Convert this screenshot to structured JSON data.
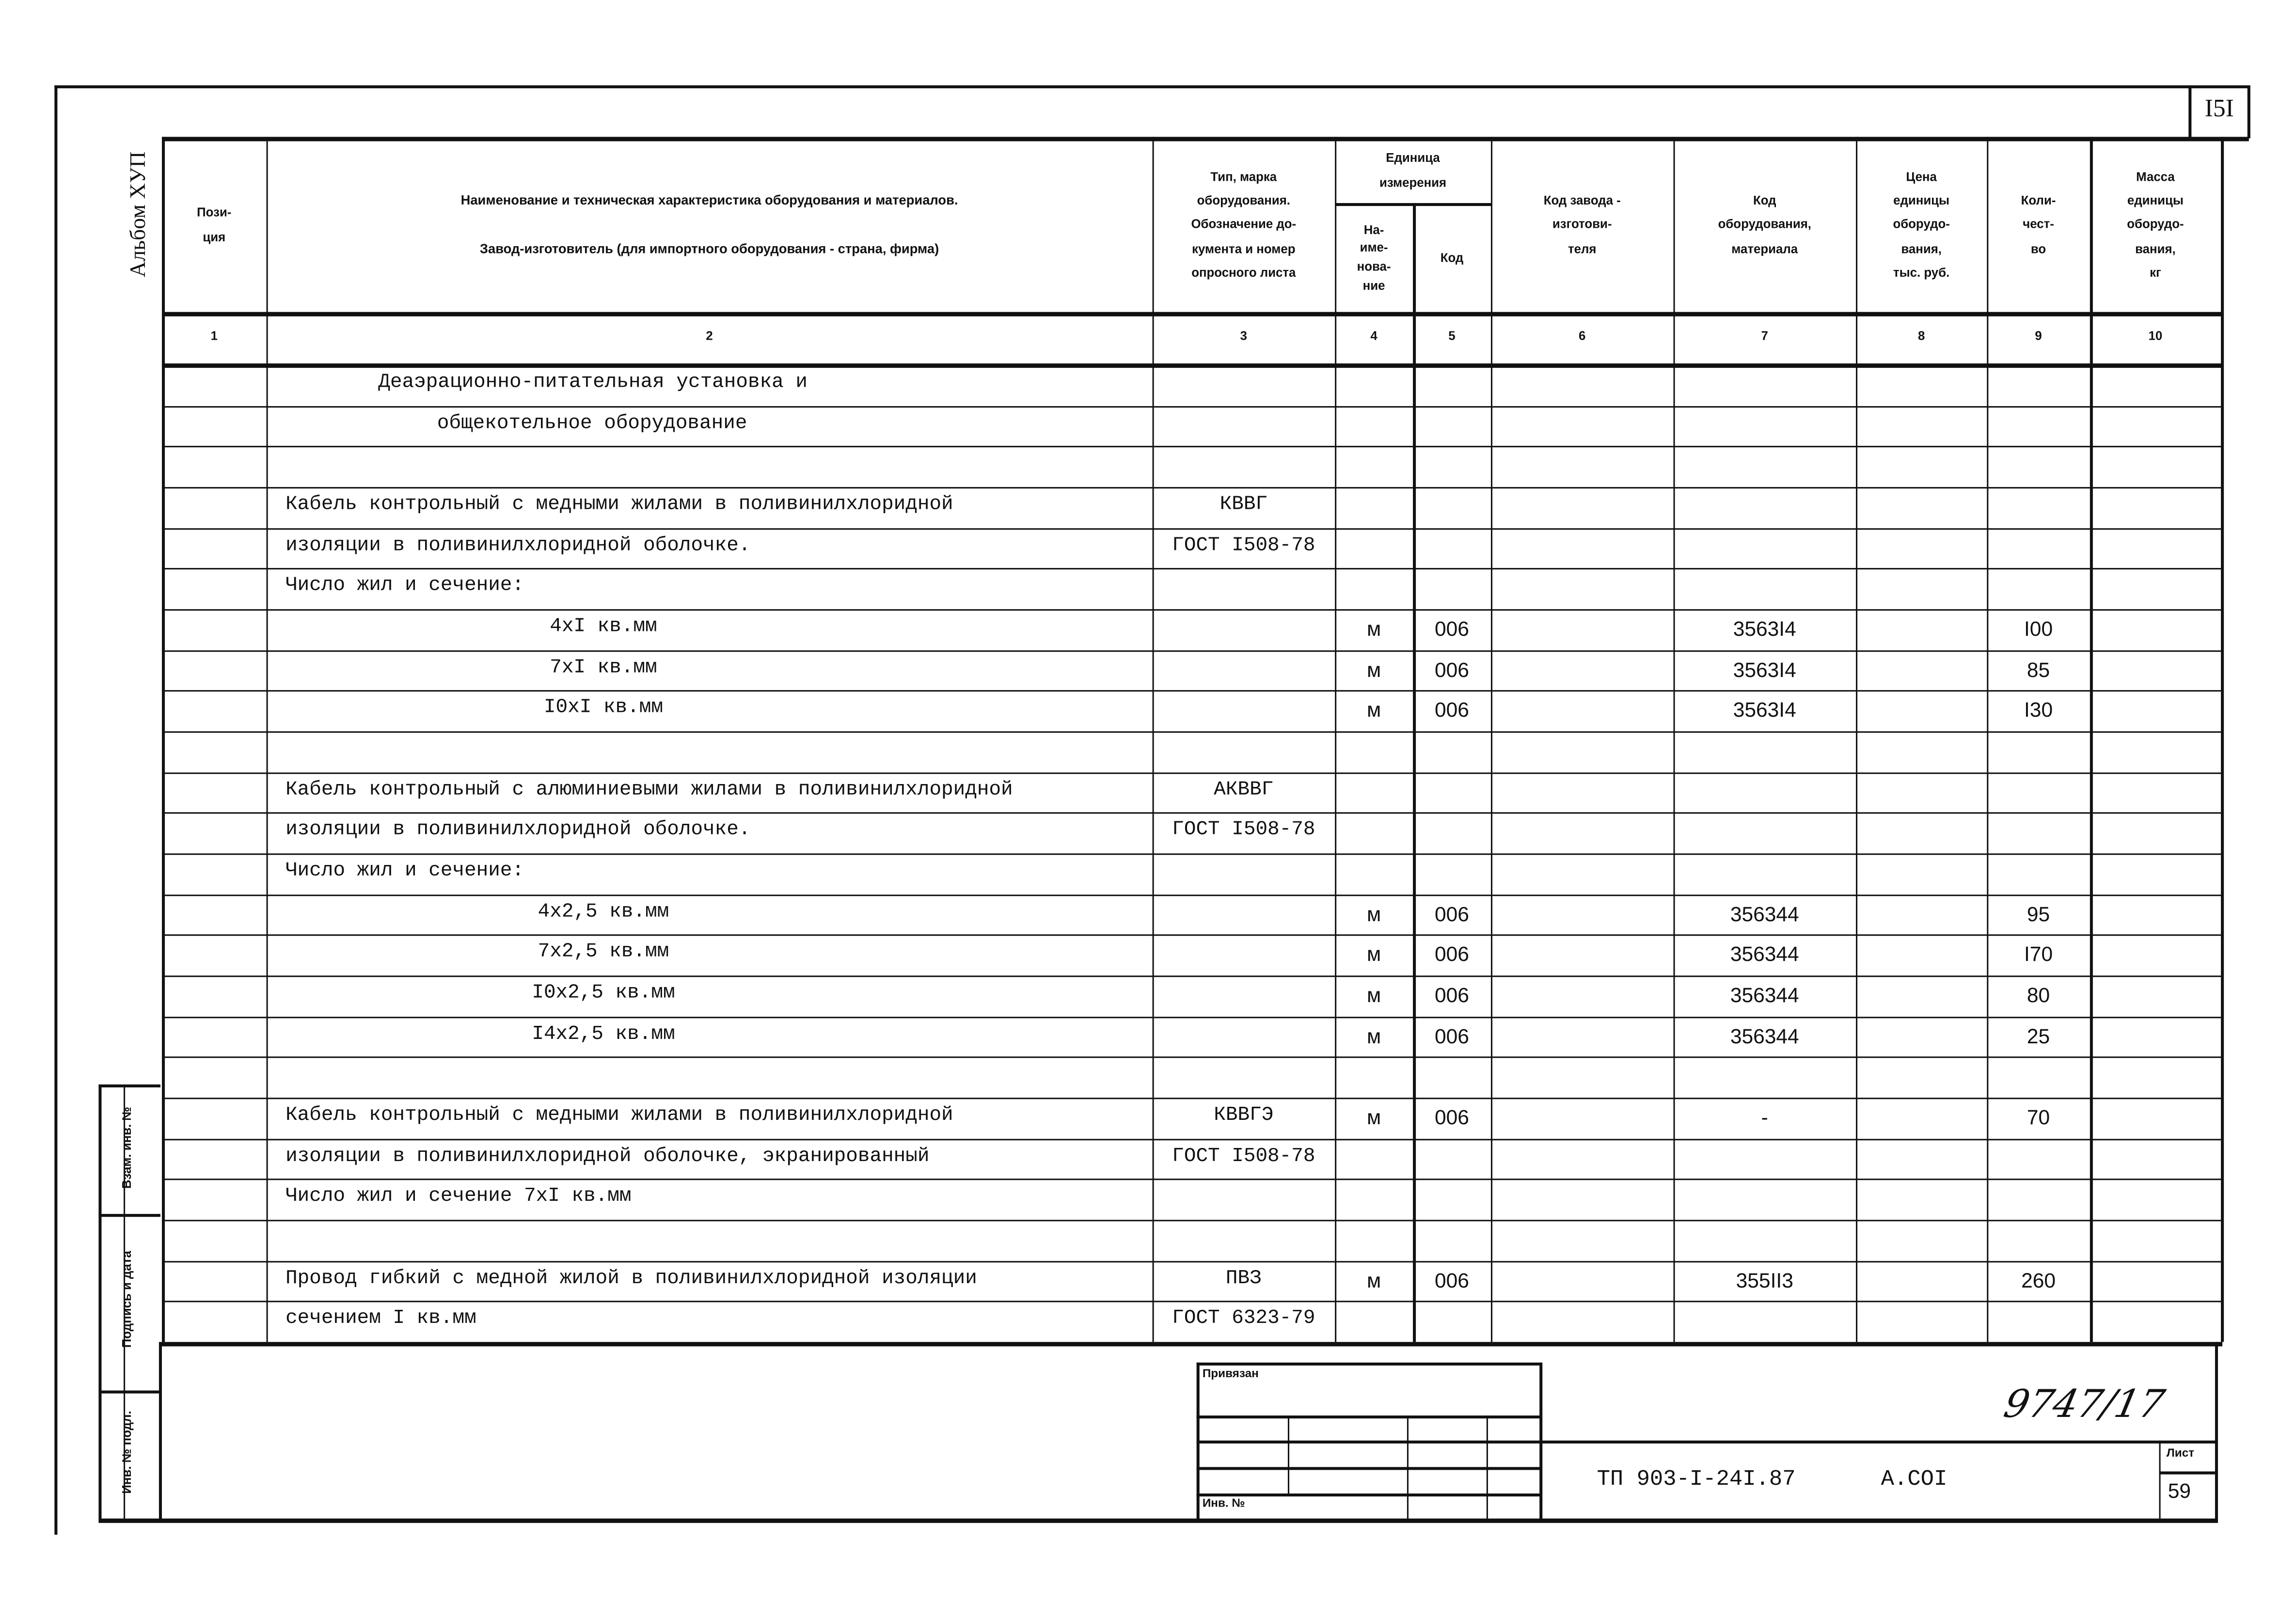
{
  "sheet_number": "I5I",
  "album_label": "Альбом ХУП",
  "header": {
    "col1": "Пози-\nция",
    "col2": "Наименование и техническая характеристика оборудования и материалов.\nЗавод-изготовитель (для импортного оборудования - страна, фирма)",
    "col3": "Тип, марка\nоборудования.\nОбозначение до-\nкумента и номер\nопросного листа",
    "unit_group": "Единица\nизмерения",
    "col4": "На-\nиме-\nнова-\nние",
    "col5": "Код",
    "col6": "Код завода -\nизготови-\nтеля",
    "col7": "Код\nоборудования,\nматериала",
    "col8": "Цена\nединицы\nоборудо-\nвания,\nтыс. руб.",
    "col9": "Коли-\nчест-\nво",
    "col10": "Масса\nединицы\nоборудо-\nвания,\nкг",
    "numbers": [
      "1",
      "2",
      "3",
      "4",
      "5",
      "6",
      "7",
      "8",
      "9",
      "10"
    ]
  },
  "rows": [
    {
      "name": "Деаэрационно-питательная установка и",
      "indent": "title"
    },
    {
      "name": "общекотельное оборудование",
      "indent": "title2"
    },
    {},
    {
      "name": "Кабель контрольный с медными жилами в поливинилхлоридной",
      "type": "КВВГ"
    },
    {
      "name": "изоляции в поливинилхлоридной оболочке.",
      "type": "ГОСТ I508-78"
    },
    {
      "name": "Число жил и сечение:"
    },
    {
      "name": "4xI кв.мм",
      "indent": "sub",
      "unit": "м",
      "unit_code": "006",
      "code": "3563I4",
      "qty": "I00"
    },
    {
      "name": "7xI кв.мм",
      "indent": "sub",
      "unit": "м",
      "unit_code": "006",
      "code": "3563I4",
      "qty": "85"
    },
    {
      "name": "I0xI кв.мм",
      "indent": "sub",
      "unit": "м",
      "unit_code": "006",
      "code": "3563I4",
      "qty": "I30"
    },
    {},
    {
      "name": "Кабель контрольный с алюминиевыми жилами в поливинилхлоридной",
      "type": "АКВВГ"
    },
    {
      "name": "изоляции в поливинилхлоридной оболочке.",
      "type": "ГОСТ I508-78"
    },
    {
      "name": "Число жил и сечение:"
    },
    {
      "name": "4x2,5 кв.мм",
      "indent": "sub",
      "unit": "м",
      "unit_code": "006",
      "code": "356344",
      "qty": "95"
    },
    {
      "name": "7x2,5 кв.мм",
      "indent": "sub",
      "unit": "м",
      "unit_code": "006",
      "code": "356344",
      "qty": "I70"
    },
    {
      "name": "I0x2,5 кв.мм",
      "indent": "sub",
      "unit": "м",
      "unit_code": "006",
      "code": "356344",
      "qty": "80"
    },
    {
      "name": "I4x2,5 кв.мм",
      "indent": "sub",
      "unit": "м",
      "unit_code": "006",
      "code": "356344",
      "qty": "25"
    },
    {},
    {
      "name": "Кабель контрольный с медными жилами в поливинилхлоридной",
      "type": "КВВГЭ",
      "unit": "м",
      "unit_code": "006",
      "code": "-",
      "qty": "70"
    },
    {
      "name": "изоляции в поливинилхлоридной оболочке, экранированный",
      "type": "ГОСТ I508-78"
    },
    {
      "name": "Число жил и сечение 7xI кв.мм"
    },
    {},
    {
      "name": "Провод гибкий с медной жилой в поливинилхлоридной изоляции",
      "type": "ПВЗ",
      "unit": "м",
      "unit_code": "006",
      "code": "355II3",
      "qty": "260"
    },
    {
      "name": "сечением I кв.мм",
      "type": "ГОСТ 6323-79"
    }
  ],
  "side_stamp": {
    "field1": "Взам. инв. №",
    "field2": "Подпись и дата",
    "field3": "Инв. № подл."
  },
  "stamp": {
    "bound_label": "Привязан",
    "inv_label": "Инв. №",
    "handwritten": "9747/17",
    "doc_code": "ТП 903-I-24I.87",
    "album_code": "А.COI",
    "sheet_label": "Лист",
    "sheet_value": "59"
  }
}
